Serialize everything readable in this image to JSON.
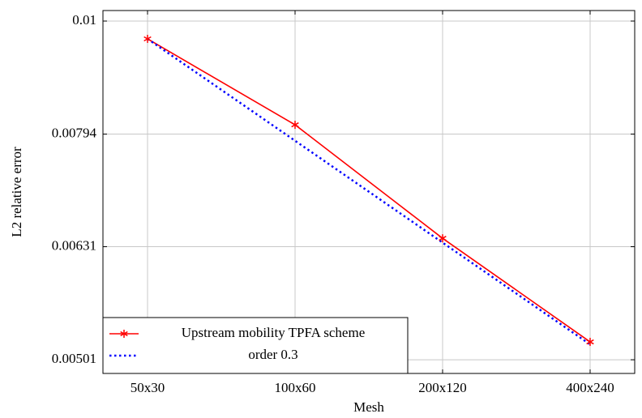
{
  "chart_data": {
    "type": "line",
    "xlabel": "Mesh",
    "ylabel": "L2 relative error",
    "categories": [
      "50x30",
      "100x60",
      "200x120",
      "400x240"
    ],
    "series": [
      {
        "name": "Upstream mobility TPFA scheme",
        "color": "#ff0000",
        "marker": "star",
        "dash": "solid",
        "values": [
          0.009643,
          0.008092,
          0.006419,
          0.005196
        ]
      },
      {
        "name": "order 0.3",
        "color": "#0000ff",
        "marker": "none",
        "dash": "dotted",
        "values": [
          0.009643,
          0.007833,
          0.006363,
          0.005169
        ]
      }
    ],
    "ylim": [
      0.004872,
      0.010217
    ],
    "yticks": [
      0.01,
      0.00794,
      0.00631,
      0.00501
    ],
    "log_y": true,
    "grid": true,
    "legend": "south west"
  }
}
